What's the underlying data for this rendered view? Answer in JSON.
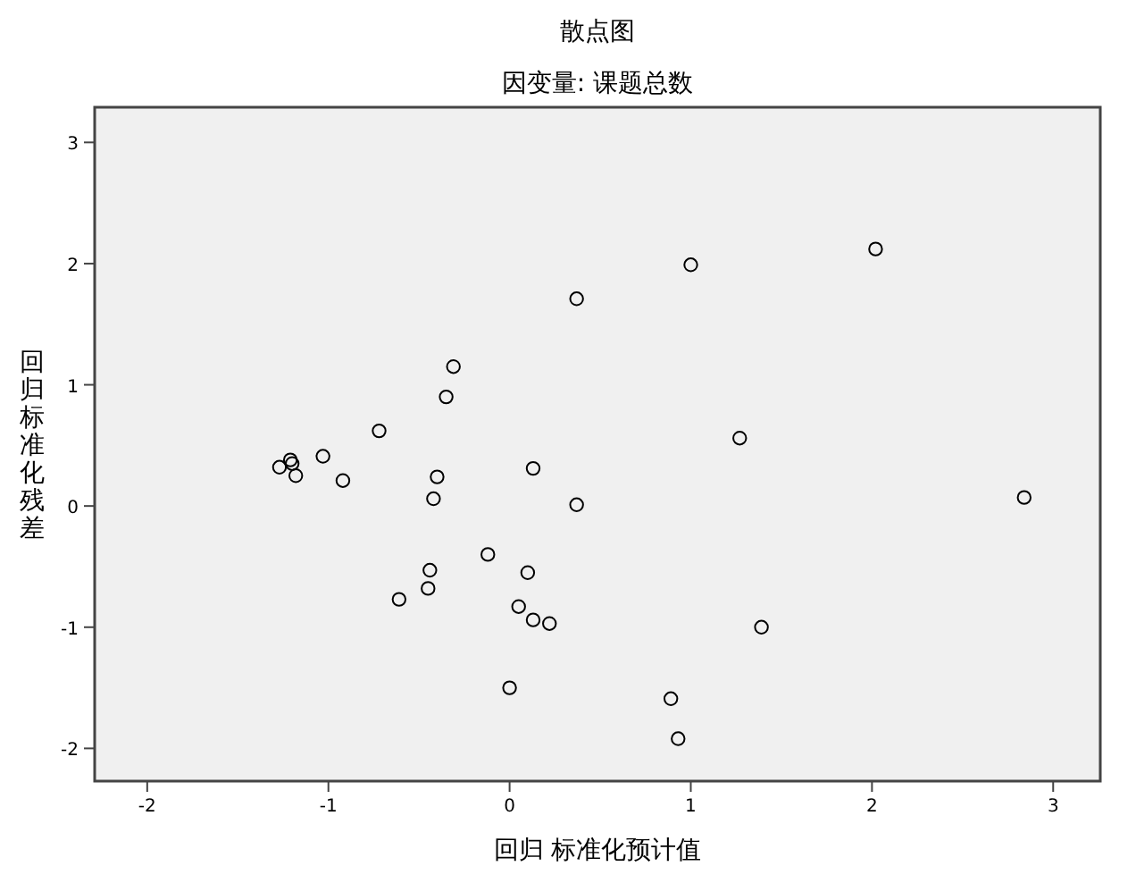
{
  "chart_data": {
    "type": "scatter",
    "title": "散点图",
    "subtitle": "因变量: 课题总数",
    "xlabel": "回归 标准化预计值",
    "ylabel": "回归标准化残差",
    "x": [
      2.02,
      1.0,
      0.37,
      -0.31,
      -0.35,
      -0.72,
      1.27,
      -1.27,
      -1.21,
      -1.2,
      -1.18,
      -1.03,
      -0.92,
      -0.4,
      -0.42,
      0.13,
      0.37,
      -0.12,
      -0.44,
      0.1,
      -0.45,
      -0.61,
      0.05,
      0.13,
      0.22,
      0.0,
      2.84,
      1.39,
      0.89,
      0.93
    ],
    "values": [
      2.12,
      1.99,
      1.71,
      1.15,
      0.9,
      0.62,
      0.56,
      0.32,
      0.38,
      0.35,
      0.25,
      0.41,
      0.21,
      0.24,
      0.06,
      0.31,
      0.01,
      -0.4,
      -0.53,
      -0.55,
      -0.68,
      -0.77,
      -0.83,
      -0.94,
      -0.97,
      -1.5,
      0.07,
      -1.0,
      -1.59,
      -1.92
    ],
    "color": "#000000",
    "marker": "circle",
    "xlim": [
      -2.29,
      3.26
    ],
    "ylim": [
      -2.27,
      3.29
    ],
    "xticks": [
      -2,
      -1,
      0,
      1,
      2,
      3
    ],
    "yticks": [
      -2,
      -1,
      0,
      1,
      2,
      3
    ],
    "grid": false
  }
}
